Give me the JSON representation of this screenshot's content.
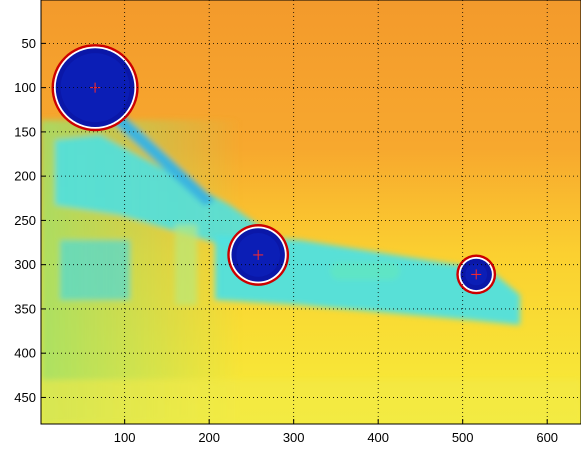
{
  "chart_data": {
    "type": "heatmap",
    "title": "",
    "xlabel": "",
    "ylabel": "",
    "xlim": [
      1,
      640
    ],
    "ylim": [
      480,
      1
    ],
    "y_direction": "reverse",
    "x_ticks": [
      100,
      200,
      300,
      400,
      500,
      600
    ],
    "y_ticks": [
      50,
      100,
      150,
      200,
      250,
      300,
      350,
      400,
      450
    ],
    "x_tick_labels": [
      "100",
      "200",
      "300",
      "400",
      "500",
      "600"
    ],
    "y_tick_labels": [
      "50",
      "100",
      "150",
      "200",
      "250",
      "300",
      "350",
      "400",
      "450"
    ],
    "grid": "dotted",
    "colormap": "jet",
    "detected_circles": [
      {
        "label": "circle-1",
        "x": 65,
        "y": 100,
        "r": 48
      },
      {
        "label": "circle-2",
        "x": 258,
        "y": 289,
        "r": 33
      },
      {
        "label": "circle-3",
        "x": 516,
        "y": 311,
        "r": 20
      }
    ],
    "colors": {
      "circle_outline": "#cc0000",
      "circle_fill": "#0a17a8",
      "center_marker": "#ff2a2a",
      "background_hot": "#f58c22",
      "background_warm": "#fcd52a",
      "region_cool": "#4fe0e0"
    }
  }
}
